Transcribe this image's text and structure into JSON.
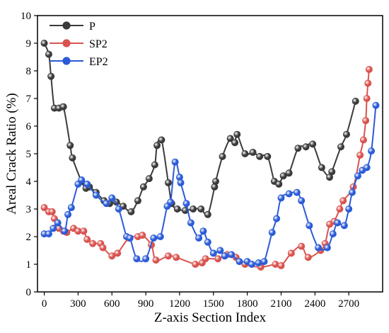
{
  "chart_data": {
    "type": "line",
    "xlabel": "Z-axis Section Index",
    "ylabel": "Areal Crack Ratio (%)",
    "xlim": [
      -60,
      3000
    ],
    "ylim": [
      0,
      10
    ],
    "x_ticks": [
      0,
      300,
      600,
      900,
      1200,
      1500,
      1800,
      2100,
      2400,
      2700
    ],
    "y_ticks": [
      0,
      1,
      2,
      3,
      4,
      5,
      6,
      7,
      8,
      9,
      10
    ],
    "grid": false,
    "legend_position": "top-left",
    "series": [
      {
        "name": "P",
        "color": "#3a3a3a",
        "points": [
          [
            0,
            9.0
          ],
          [
            40,
            8.6
          ],
          [
            60,
            7.8
          ],
          [
            90,
            6.65
          ],
          [
            130,
            6.65
          ],
          [
            170,
            6.7
          ],
          [
            230,
            5.3
          ],
          [
            250,
            4.85
          ],
          [
            330,
            4.0
          ],
          [
            370,
            3.75
          ],
          [
            400,
            3.8
          ],
          [
            460,
            3.6
          ],
          [
            530,
            3.3
          ],
          [
            580,
            3.2
          ],
          [
            640,
            3.25
          ],
          [
            700,
            3.1
          ],
          [
            770,
            2.9
          ],
          [
            830,
            3.3
          ],
          [
            880,
            3.8
          ],
          [
            930,
            4.1
          ],
          [
            980,
            4.6
          ],
          [
            1000,
            5.3
          ],
          [
            1040,
            5.5
          ],
          [
            1100,
            3.95
          ],
          [
            1130,
            3.2
          ],
          [
            1180,
            3.0
          ],
          [
            1250,
            2.95
          ],
          [
            1320,
            3.0
          ],
          [
            1390,
            3.0
          ],
          [
            1450,
            2.8
          ],
          [
            1510,
            3.8
          ],
          [
            1520,
            4.0
          ],
          [
            1580,
            4.9
          ],
          [
            1650,
            5.55
          ],
          [
            1690,
            5.4
          ],
          [
            1710,
            5.7
          ],
          [
            1780,
            5.0
          ],
          [
            1850,
            5.05
          ],
          [
            1910,
            4.9
          ],
          [
            1980,
            4.9
          ],
          [
            2040,
            4.0
          ],
          [
            2080,
            3.9
          ],
          [
            2120,
            4.2
          ],
          [
            2170,
            4.3
          ],
          [
            2250,
            5.2
          ],
          [
            2320,
            5.25
          ],
          [
            2380,
            5.35
          ],
          [
            2460,
            4.5
          ],
          [
            2530,
            4.15
          ],
          [
            2550,
            4.35
          ],
          [
            2630,
            5.25
          ],
          [
            2680,
            5.7
          ],
          [
            2760,
            6.9
          ]
        ]
      },
      {
        "name": "SP2",
        "color": "#d9534f",
        "points": [
          [
            0,
            3.05
          ],
          [
            40,
            2.9
          ],
          [
            70,
            2.9
          ],
          [
            90,
            2.65
          ],
          [
            130,
            2.3
          ],
          [
            170,
            2.2
          ],
          [
            200,
            2.15
          ],
          [
            260,
            2.3
          ],
          [
            300,
            2.2
          ],
          [
            350,
            2.2
          ],
          [
            380,
            1.9
          ],
          [
            430,
            1.75
          ],
          [
            500,
            1.75
          ],
          [
            520,
            1.6
          ],
          [
            600,
            1.3
          ],
          [
            650,
            1.4
          ],
          [
            750,
            1.95
          ],
          [
            830,
            2.0
          ],
          [
            870,
            2.05
          ],
          [
            950,
            1.7
          ],
          [
            990,
            1.15
          ],
          [
            1100,
            1.3
          ],
          [
            1170,
            1.25
          ],
          [
            1340,
            1.0
          ],
          [
            1400,
            1.05
          ],
          [
            1430,
            1.2
          ],
          [
            1540,
            1.2
          ],
          [
            1620,
            1.35
          ],
          [
            1700,
            1.25
          ],
          [
            1780,
            1.0
          ],
          [
            1920,
            0.9
          ],
          [
            2050,
            1.0
          ],
          [
            2100,
            0.95
          ],
          [
            2190,
            1.4
          ],
          [
            2280,
            1.65
          ],
          [
            2340,
            1.25
          ],
          [
            2450,
            1.5
          ],
          [
            2490,
            1.75
          ],
          [
            2530,
            2.45
          ],
          [
            2570,
            2.55
          ],
          [
            2620,
            3.0
          ],
          [
            2650,
            3.3
          ],
          [
            2740,
            3.8
          ],
          [
            2800,
            4.95
          ],
          [
            2830,
            5.5
          ],
          [
            2850,
            6.2
          ],
          [
            2860,
            7.0
          ],
          [
            2870,
            7.55
          ],
          [
            2880,
            8.05
          ]
        ]
      },
      {
        "name": "EP2",
        "color": "#2a5bd7",
        "points": [
          [
            0,
            2.1
          ],
          [
            40,
            2.1
          ],
          [
            80,
            2.3
          ],
          [
            120,
            2.5
          ],
          [
            180,
            2.2
          ],
          [
            210,
            2.8
          ],
          [
            240,
            3.05
          ],
          [
            300,
            3.9
          ],
          [
            330,
            4.05
          ],
          [
            380,
            3.9
          ],
          [
            460,
            3.5
          ],
          [
            550,
            3.2
          ],
          [
            600,
            3.4
          ],
          [
            660,
            3.0
          ],
          [
            730,
            2.0
          ],
          [
            760,
            1.95
          ],
          [
            820,
            1.2
          ],
          [
            900,
            1.2
          ],
          [
            970,
            1.95
          ],
          [
            1030,
            2.0
          ],
          [
            1090,
            3.1
          ],
          [
            1120,
            3.25
          ],
          [
            1160,
            4.7
          ],
          [
            1200,
            4.15
          ],
          [
            1210,
            3.95
          ],
          [
            1260,
            3.2
          ],
          [
            1300,
            2.5
          ],
          [
            1370,
            1.95
          ],
          [
            1410,
            2.2
          ],
          [
            1450,
            1.8
          ],
          [
            1500,
            1.4
          ],
          [
            1560,
            1.5
          ],
          [
            1600,
            1.3
          ],
          [
            1660,
            1.35
          ],
          [
            1730,
            1.1
          ],
          [
            1800,
            1.1
          ],
          [
            1840,
            1.0
          ],
          [
            1900,
            1.05
          ],
          [
            1950,
            1.1
          ],
          [
            2020,
            2.15
          ],
          [
            2060,
            2.65
          ],
          [
            2100,
            3.4
          ],
          [
            2170,
            3.55
          ],
          [
            2240,
            3.6
          ],
          [
            2280,
            3.3
          ],
          [
            2350,
            2.4
          ],
          [
            2430,
            1.6
          ],
          [
            2510,
            1.6
          ],
          [
            2560,
            2.1
          ],
          [
            2600,
            2.5
          ],
          [
            2660,
            2.4
          ],
          [
            2700,
            3.0
          ],
          [
            2730,
            3.6
          ],
          [
            2780,
            4.2
          ],
          [
            2820,
            4.4
          ],
          [
            2860,
            4.5
          ],
          [
            2900,
            5.1
          ],
          [
            2940,
            6.75
          ]
        ]
      }
    ]
  }
}
